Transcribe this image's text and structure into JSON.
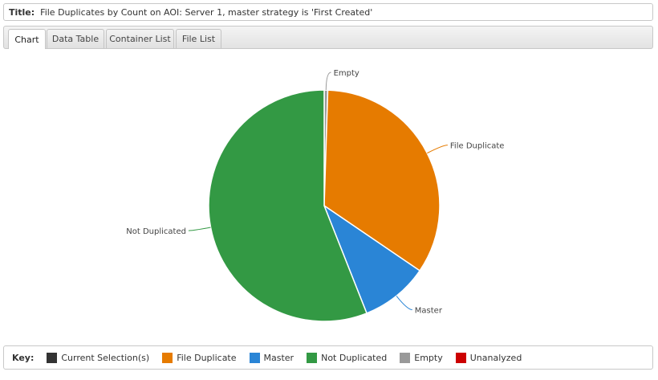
{
  "title_bar": {
    "label": "Title:",
    "text": "File Duplicates by Count on AOI: Server 1, master strategy is 'First Created'"
  },
  "tabs": [
    {
      "label": "Chart",
      "active": true
    },
    {
      "label": "Data Table",
      "active": false
    },
    {
      "label": "Container List",
      "active": false
    },
    {
      "label": "File List",
      "active": false
    }
  ],
  "chart_data": {
    "type": "pie",
    "title": "",
    "slices": [
      {
        "label": "Empty",
        "value": 0.5,
        "color": "#999999"
      },
      {
        "label": "File Duplicate",
        "value": 34.0,
        "color": "#e67b00"
      },
      {
        "label": "Master",
        "value": 9.5,
        "color": "#2a85d6"
      },
      {
        "label": "Not Duplicated",
        "value": 56.0,
        "color": "#339944"
      }
    ],
    "unit": "percent"
  },
  "key": {
    "title": "Key:",
    "items": [
      {
        "label": "Current Selection(s)",
        "color": "#333333"
      },
      {
        "label": "File Duplicate",
        "color": "#e67b00"
      },
      {
        "label": "Master",
        "color": "#2a85d6"
      },
      {
        "label": "Not Duplicated",
        "color": "#339944"
      },
      {
        "label": "Empty",
        "color": "#999999"
      },
      {
        "label": "Unanalyzed",
        "color": "#cc0000"
      }
    ]
  }
}
